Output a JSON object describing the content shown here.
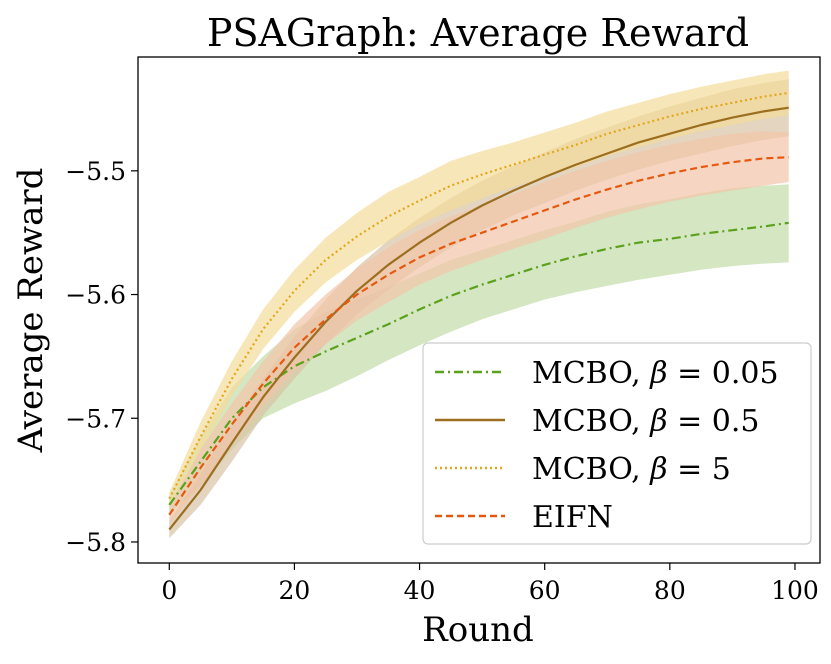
{
  "chart_data": {
    "type": "line",
    "title": "PSAGraph: Average Reward",
    "xlabel": "Round",
    "ylabel": "Average Reward",
    "xlim": [
      -5,
      104
    ],
    "ylim": [
      -5.817,
      -5.408
    ],
    "xticks": [
      0,
      20,
      40,
      60,
      80,
      100
    ],
    "xtick_labels": [
      "0",
      "20",
      "40",
      "60",
      "80",
      "100"
    ],
    "yticks": [
      -5.8,
      -5.7,
      -5.6,
      -5.5
    ],
    "ytick_labels": [
      "−5.8",
      "−5.7",
      "−5.6",
      "−5.5"
    ],
    "grid": false,
    "legend_position": "lower-right",
    "x": [
      0,
      5,
      10,
      15,
      20,
      25,
      30,
      35,
      40,
      45,
      50,
      55,
      60,
      65,
      70,
      75,
      80,
      85,
      90,
      95,
      99
    ],
    "series": [
      {
        "name": "MCBO, β = 0.05",
        "legend_prefix": "MCBO, ",
        "legend_symbol": "β",
        "legend_suffix": " = 0.05",
        "color": "#5aa11c",
        "fill": "#c3dca8",
        "dash": "9,4,2,4",
        "mean": [
          -5.77,
          -5.735,
          -5.7,
          -5.675,
          -5.658,
          -5.646,
          -5.635,
          -5.624,
          -5.612,
          -5.601,
          -5.592,
          -5.584,
          -5.576,
          -5.569,
          -5.563,
          -5.558,
          -5.555,
          -5.551,
          -5.548,
          -5.545,
          -5.542
        ],
        "lower": [
          -5.777,
          -5.755,
          -5.725,
          -5.7,
          -5.688,
          -5.678,
          -5.666,
          -5.653,
          -5.641,
          -5.63,
          -5.62,
          -5.612,
          -5.604,
          -5.598,
          -5.593,
          -5.588,
          -5.584,
          -5.58,
          -5.577,
          -5.575,
          -5.574
        ],
        "upper": [
          -5.763,
          -5.715,
          -5.675,
          -5.65,
          -5.628,
          -5.614,
          -5.604,
          -5.594,
          -5.583,
          -5.572,
          -5.564,
          -5.556,
          -5.548,
          -5.541,
          -5.533,
          -5.527,
          -5.523,
          -5.518,
          -5.514,
          -5.512,
          -5.511
        ]
      },
      {
        "name": "MCBO, β = 0.5",
        "legend_prefix": "MCBO, ",
        "legend_symbol": "β",
        "legend_suffix": " = 0.5",
        "color": "#9c6e1f",
        "fill": "#d7c3a5",
        "dash": "",
        "mean": [
          -5.79,
          -5.758,
          -5.72,
          -5.683,
          -5.651,
          -5.622,
          -5.597,
          -5.576,
          -5.558,
          -5.542,
          -5.528,
          -5.516,
          -5.505,
          -5.495,
          -5.486,
          -5.477,
          -5.47,
          -5.463,
          -5.457,
          -5.452,
          -5.449
        ],
        "lower": [
          -5.797,
          -5.77,
          -5.735,
          -5.698,
          -5.668,
          -5.64,
          -5.616,
          -5.596,
          -5.578,
          -5.562,
          -5.548,
          -5.536,
          -5.526,
          -5.516,
          -5.507,
          -5.499,
          -5.492,
          -5.486,
          -5.48,
          -5.475,
          -5.472
        ],
        "upper": [
          -5.783,
          -5.745,
          -5.705,
          -5.668,
          -5.634,
          -5.604,
          -5.578,
          -5.556,
          -5.538,
          -5.522,
          -5.508,
          -5.496,
          -5.485,
          -5.474,
          -5.465,
          -5.456,
          -5.448,
          -5.441,
          -5.434,
          -5.429,
          -5.426
        ]
      },
      {
        "name": "MCBO, β = 5",
        "legend_prefix": "MCBO, ",
        "legend_symbol": "β",
        "legend_suffix": " = 5",
        "color": "#e3a619",
        "fill": "#f3dc9a",
        "dash": "2,3",
        "mean": [
          -5.765,
          -5.715,
          -5.668,
          -5.628,
          -5.597,
          -5.572,
          -5.553,
          -5.537,
          -5.524,
          -5.512,
          -5.503,
          -5.495,
          -5.487,
          -5.479,
          -5.47,
          -5.463,
          -5.456,
          -5.45,
          -5.445,
          -5.44,
          -5.437
        ],
        "lower": [
          -5.77,
          -5.727,
          -5.682,
          -5.644,
          -5.614,
          -5.59,
          -5.572,
          -5.557,
          -5.543,
          -5.532,
          -5.522,
          -5.513,
          -5.505,
          -5.497,
          -5.488,
          -5.481,
          -5.474,
          -5.468,
          -5.463,
          -5.458,
          -5.455
        ],
        "upper": [
          -5.76,
          -5.703,
          -5.654,
          -5.612,
          -5.58,
          -5.554,
          -5.534,
          -5.517,
          -5.505,
          -5.492,
          -5.484,
          -5.477,
          -5.469,
          -5.461,
          -5.452,
          -5.445,
          -5.438,
          -5.432,
          -5.427,
          -5.422,
          -5.419
        ]
      },
      {
        "name": "EIFN",
        "legend_prefix": "EIFN",
        "legend_symbol": "",
        "legend_suffix": "",
        "color": "#e5590f",
        "fill": "#f2c4a8",
        "dash": "7,4",
        "mean": [
          -5.778,
          -5.74,
          -5.705,
          -5.672,
          -5.643,
          -5.62,
          -5.6,
          -5.584,
          -5.57,
          -5.559,
          -5.55,
          -5.541,
          -5.532,
          -5.523,
          -5.515,
          -5.508,
          -5.502,
          -5.497,
          -5.493,
          -5.49,
          -5.489
        ],
        "lower": [
          -5.785,
          -5.755,
          -5.722,
          -5.69,
          -5.662,
          -5.64,
          -5.621,
          -5.606,
          -5.592,
          -5.581,
          -5.572,
          -5.563,
          -5.555,
          -5.546,
          -5.538,
          -5.531,
          -5.525,
          -5.52,
          -5.516,
          -5.512,
          -5.509
        ],
        "upper": [
          -5.771,
          -5.725,
          -5.688,
          -5.654,
          -5.624,
          -5.6,
          -5.579,
          -5.562,
          -5.548,
          -5.537,
          -5.528,
          -5.519,
          -5.509,
          -5.5,
          -5.492,
          -5.485,
          -5.479,
          -5.474,
          -5.47,
          -5.468,
          -5.469
        ]
      }
    ]
  }
}
